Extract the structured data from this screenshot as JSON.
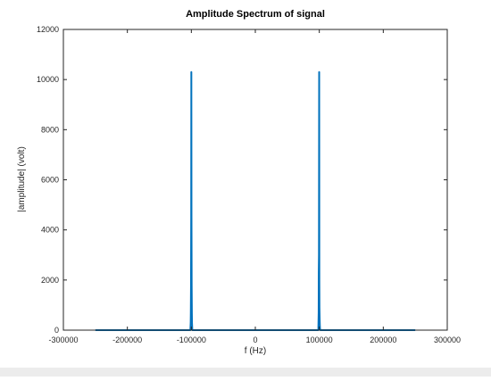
{
  "chart_data": {
    "type": "line",
    "title": "Amplitude Spectrum of signal",
    "xlabel": "f (Hz)",
    "ylabel": "|amplitude| (volt)",
    "xlim": [
      -300000,
      300000
    ],
    "ylim": [
      0,
      12000
    ],
    "xticks": [
      -300000,
      -200000,
      -100000,
      0,
      100000,
      200000,
      300000
    ],
    "xtick_labels": [
      "-300000",
      "-200000",
      "-100000",
      "0",
      "100000",
      "200000",
      "300000"
    ],
    "yticks": [
      0,
      2000,
      4000,
      6000,
      8000,
      10000,
      12000
    ],
    "ytick_labels": [
      "0",
      "2000",
      "4000",
      "6000",
      "8000",
      "10000",
      "12000"
    ],
    "grid": false,
    "series": [
      {
        "color": "#0072bd",
        "x": [
          -250000,
          -101500,
          -101000,
          -100800,
          -100500,
          -100200,
          -100000,
          -99800,
          -99500,
          -99200,
          -99000,
          -98500,
          98500,
          99000,
          99200,
          99500,
          99800,
          100000,
          100200,
          100500,
          100800,
          101000,
          101500,
          250000
        ],
        "y": [
          0,
          0,
          300,
          700,
          1800,
          4500,
          10300,
          4500,
          1800,
          700,
          300,
          0,
          0,
          700,
          2300,
          3000,
          10300,
          2000,
          900,
          500,
          200,
          100,
          0,
          0
        ]
      }
    ]
  }
}
